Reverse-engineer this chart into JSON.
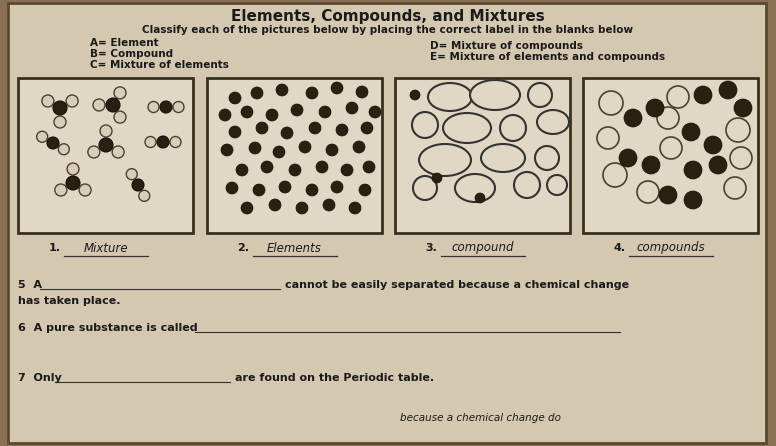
{
  "title": "Elements, Compounds, and Mixtures",
  "subtitle": "Classify each of the pictures below by placing the correct label in the blanks below",
  "legend_left": [
    "A= Element",
    "B= Compound",
    "C= Mixture of elements"
  ],
  "legend_right": [
    "D= Mixture of compounds",
    "E= Mixture of elements and compounds"
  ],
  "answers": [
    "1. Mixture",
    "2. Elements",
    "3. compound",
    "4. compounds"
  ],
  "q5_pre": "5  A",
  "q5_post": "cannot be easily separated because a chemical change",
  "q5b": "has taken place.",
  "q6_pre": "6  A pure substance is called",
  "q7_pre": "7  Only",
  "q7_post": "are found on the Periodic table.",
  "bg_color": "#8a7055",
  "paper_color": "#d4c8b0",
  "box_color": "#e0d8c4",
  "text_color": "#1a1a1a",
  "dark_dot": "#2a2010",
  "open_dot_fill": "#d8ceb8",
  "open_dot_edge": "#4a4030"
}
